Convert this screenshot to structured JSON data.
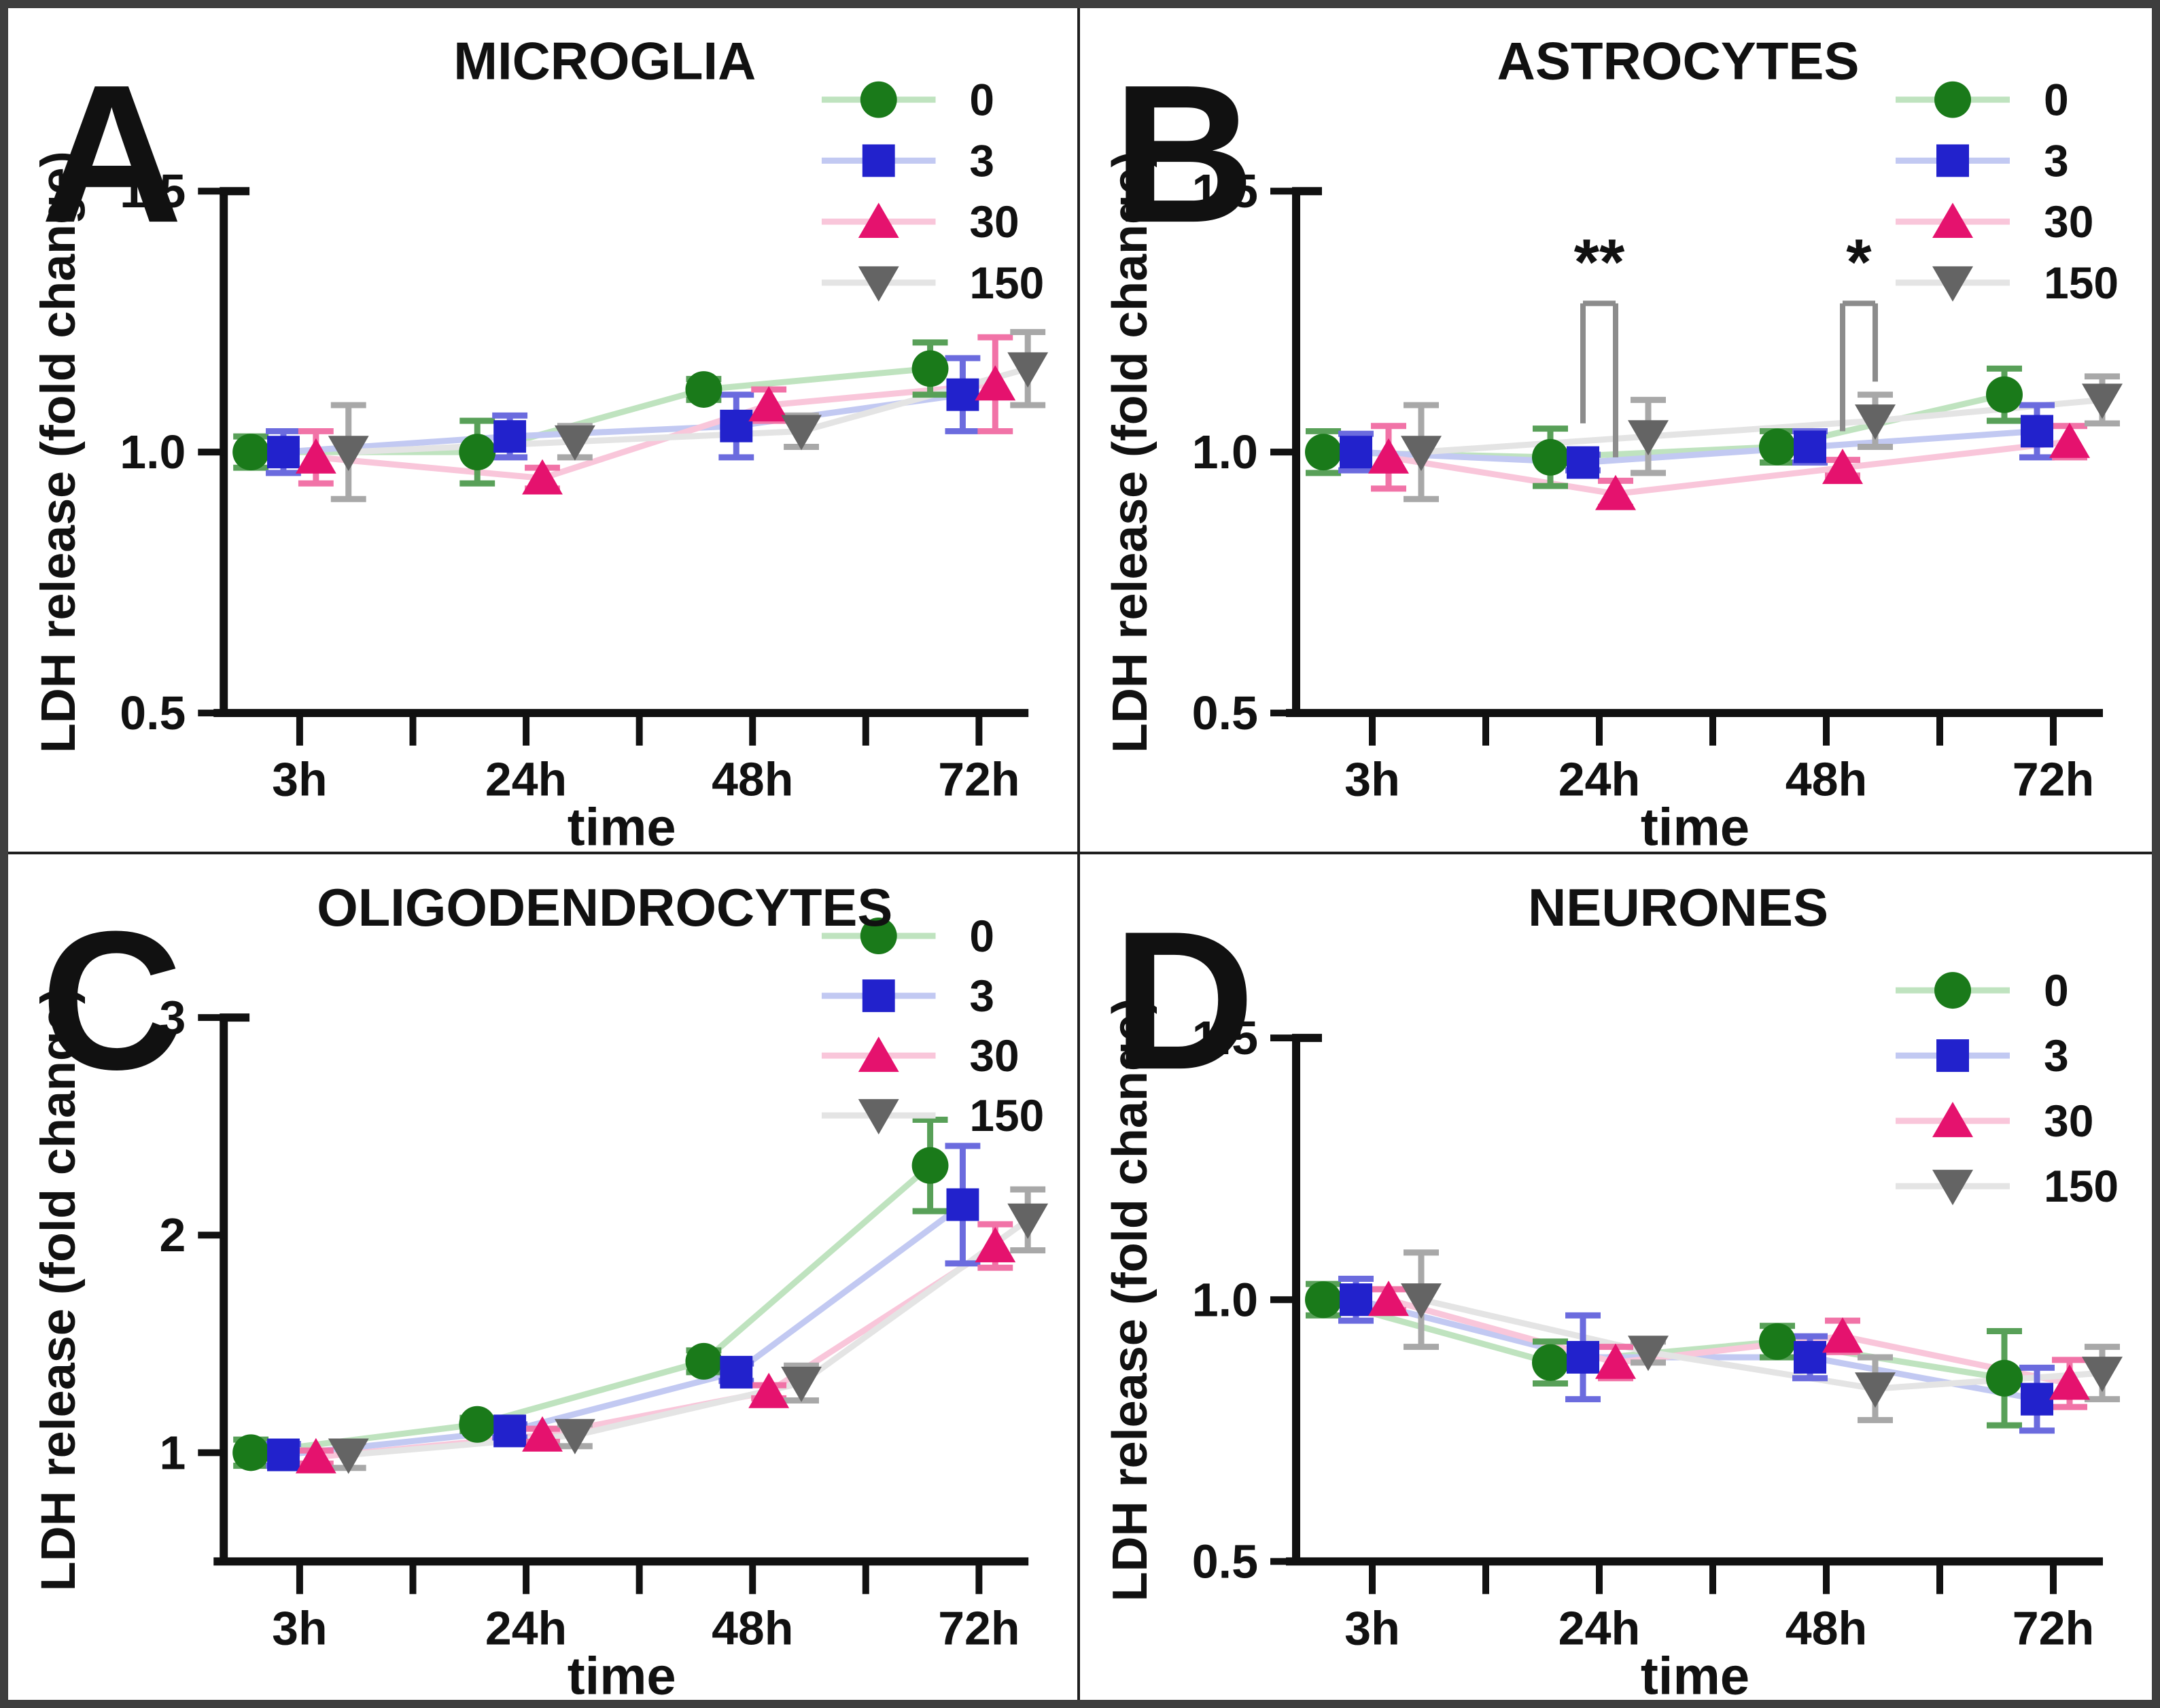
{
  "figure": {
    "background": "#ffffff",
    "border_color": "#3e3e3e",
    "divider_color": "#1f1f1f"
  },
  "legend": {
    "labels": [
      "0",
      "3",
      "30",
      "150"
    ]
  },
  "series_styles": [
    {
      "name": "0",
      "marker": "circle",
      "color": "#1a7a1a",
      "error_color": "#58a058",
      "line_color": "#bfe3bf"
    },
    {
      "name": "3",
      "marker": "square",
      "color": "#2222cc",
      "error_color": "#6b6bde",
      "line_color": "#c2c9f2"
    },
    {
      "name": "30",
      "marker": "triangle-up",
      "color": "#e5126e",
      "error_color": "#f173a7",
      "line_color": "#f9c6da"
    },
    {
      "name": "150",
      "marker": "triangle-down",
      "color": "#646464",
      "error_color": "#a8a8a8",
      "line_color": "#e4e4e4"
    }
  ],
  "chart_data": [
    {
      "type": "line",
      "panel_letter": "A",
      "title": "MICROGLIA",
      "xlabel": "time",
      "ylabel": "LDH release (fold change)",
      "x_categories": [
        "3h",
        "24h",
        "48h",
        "72h"
      ],
      "ylim": [
        0.5,
        1.5
      ],
      "yticks": [
        {
          "value": 0.5,
          "label": "0.5"
        },
        {
          "value": 1.0,
          "label": "1.0"
        },
        {
          "value": 1.5,
          "label": "1.5"
        }
      ],
      "legend_position": {
        "top": 135,
        "row_gap": 90
      },
      "series": [
        {
          "name": "0",
          "values": [
            1.0,
            1.0,
            1.12,
            1.16
          ],
          "errors": [
            0.03,
            0.06,
            0.02,
            0.05
          ]
        },
        {
          "name": "3",
          "values": [
            1.0,
            1.03,
            1.05,
            1.11
          ],
          "errors": [
            0.04,
            0.04,
            0.06,
            0.07
          ]
        },
        {
          "name": "30",
          "values": [
            0.99,
            0.95,
            1.09,
            1.13
          ],
          "errors": [
            0.05,
            0.02,
            0.03,
            0.09
          ]
        },
        {
          "name": "150",
          "values": [
            1.0,
            1.02,
            1.04,
            1.16
          ],
          "errors": [
            0.09,
            0.03,
            0.03,
            0.07
          ]
        }
      ]
    },
    {
      "type": "line",
      "panel_letter": "B",
      "title": "ASTROCYTES",
      "xlabel": "time",
      "ylabel": "LDH release (fold change)",
      "x_categories": [
        "3h",
        "24h",
        "48h",
        "72h"
      ],
      "ylim": [
        0.5,
        1.5
      ],
      "yticks": [
        {
          "value": 0.5,
          "label": "0.5"
        },
        {
          "value": 1.0,
          "label": "1.0"
        },
        {
          "value": 1.5,
          "label": "1.5"
        }
      ],
      "legend_position": {
        "top": 135,
        "row_gap": 90
      },
      "series": [
        {
          "name": "0",
          "values": [
            1.0,
            0.99,
            1.01,
            1.11
          ],
          "errors": [
            0.04,
            0.055,
            0.03,
            0.05
          ]
        },
        {
          "name": "3",
          "values": [
            1.0,
            0.98,
            1.01,
            1.04
          ],
          "errors": [
            0.035,
            0.015,
            0.03,
            0.05
          ]
        },
        {
          "name": "30",
          "values": [
            0.99,
            0.92,
            0.97,
            1.02
          ],
          "errors": [
            0.06,
            0.025,
            0.015,
            0.03
          ]
        },
        {
          "name": "150",
          "values": [
            1.0,
            1.03,
            1.06,
            1.1
          ],
          "errors": [
            0.09,
            0.07,
            0.05,
            0.045
          ]
        }
      ],
      "significance": [
        {
          "label": "**",
          "group": 1,
          "left_series": 1,
          "right_series": 2,
          "bar_value": 1.285,
          "left_end_value": 1.055,
          "right_end_value": 0.99
        },
        {
          "label": "*",
          "group": 2,
          "left_series": 2,
          "right_series": 3,
          "bar_value": 1.285,
          "left_end_value": 1.04,
          "right_end_value": 1.135
        }
      ]
    },
    {
      "type": "line",
      "panel_letter": "C",
      "title": "OLIGODENDROCYTES",
      "xlabel": "time",
      "ylabel": "LDH release (fold change)",
      "x_categories": [
        "3h",
        "24h",
        "48h",
        "72h"
      ],
      "ylim": [
        0.5,
        3.0
      ],
      "yticks": [
        {
          "value": 1,
          "label": "1"
        },
        {
          "value": 2,
          "label": "2"
        },
        {
          "value": 3,
          "label": "3"
        }
      ],
      "legend_position": {
        "top": 120,
        "row_gap": 88
      },
      "series": [
        {
          "name": "0",
          "values": [
            1.0,
            1.13,
            1.42,
            2.32
          ],
          "errors": [
            0.06,
            0.03,
            0.05,
            0.21
          ]
        },
        {
          "name": "3",
          "values": [
            0.99,
            1.1,
            1.37,
            2.14
          ],
          "errors": [
            0.05,
            0.03,
            0.04,
            0.27
          ]
        },
        {
          "name": "30",
          "values": [
            0.98,
            1.08,
            1.28,
            1.95
          ],
          "errors": [
            0.03,
            0.03,
            0.03,
            0.1
          ]
        },
        {
          "name": "150",
          "values": [
            0.99,
            1.08,
            1.32,
            2.07
          ],
          "errors": [
            0.06,
            0.05,
            0.08,
            0.14
          ]
        }
      ]
    },
    {
      "type": "line",
      "panel_letter": "D",
      "title": "NEURONES",
      "xlabel": "time",
      "ylabel": "LDH release (fold change)",
      "x_categories": [
        "3h",
        "24h",
        "48h",
        "72h"
      ],
      "ylim": [
        0.5,
        1.5
      ],
      "yticks": [
        {
          "value": 0.5,
          "label": "0.5"
        },
        {
          "value": 1.0,
          "label": "1.0"
        },
        {
          "value": 1.5,
          "label": "1.5"
        }
      ],
      "legend_position": {
        "top": 200,
        "row_gap": 96
      },
      "series": [
        {
          "name": "0",
          "values": [
            1.0,
            0.88,
            0.92,
            0.85
          ],
          "errors": [
            0.03,
            0.04,
            0.03,
            0.09
          ]
        },
        {
          "name": "3",
          "values": [
            1.0,
            0.89,
            0.89,
            0.81
          ],
          "errors": [
            0.04,
            0.08,
            0.04,
            0.06
          ]
        },
        {
          "name": "30",
          "values": [
            1.0,
            0.88,
            0.93,
            0.84
          ],
          "errors": [
            0.02,
            0.03,
            0.03,
            0.045
          ]
        },
        {
          "name": "150",
          "values": [
            1.0,
            0.9,
            0.83,
            0.86
          ],
          "errors": [
            0.09,
            0.02,
            0.06,
            0.05
          ]
        }
      ]
    }
  ]
}
